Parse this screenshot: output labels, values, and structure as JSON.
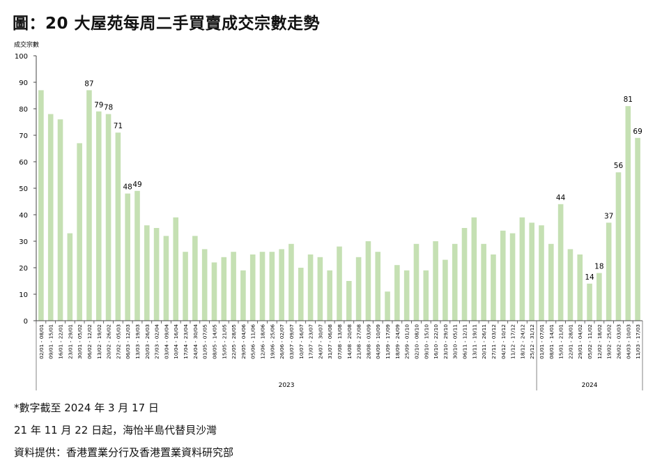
{
  "page": {
    "title": "圖：20 大屋苑每周二手買賣成交宗數走勢",
    "notes": [
      "*數字截至 2024 年 3 月 17 日",
      "21 年 11 月 22 日起，海怡半島代替貝沙灣",
      "資料提供：香港置業分行及香港置業資料研究部"
    ]
  },
  "chart_data": {
    "type": "bar",
    "ylabel": "成交宗數",
    "ylim": [
      0,
      100
    ],
    "yticks": [
      0,
      10,
      20,
      30,
      40,
      50,
      60,
      70,
      80,
      90,
      100
    ],
    "bar_color": "#c5e0b3",
    "year_groups": [
      {
        "label": "2023",
        "count": 52
      },
      {
        "label": "2024",
        "count": 11
      }
    ],
    "categories": [
      "02/01 - 08/01",
      "09/01 - 15/01",
      "16/01 - 22/01",
      "23/01 - 29/01",
      "30/01 - 05/02",
      "06/02 - 12/02",
      "13/02 - 19/02",
      "20/02 - 26/02",
      "27/02 - 05/03",
      "06/03 - 12/03",
      "13/03 - 19/03",
      "20/03 - 26/03",
      "27/03 - 02/04",
      "03/04 - 09/04",
      "10/04 - 16/04",
      "17/04 - 23/04",
      "24/04 - 30/04",
      "01/05 - 07/05",
      "08/05 - 14/05",
      "15/05 - 21/05",
      "22/05 - 28/05",
      "29/05 - 04/06",
      "05/06 - 11/06",
      "12/06 - 18/06",
      "19/06 - 25/06",
      "26/06 - 02/07",
      "03/07 - 09/07",
      "10/07 - 16/07",
      "17/07 - 23/07",
      "24/07 - 30/07",
      "31/07 - 06/08",
      "07/08 - 13/08",
      "14/08 - 20/08",
      "21/08 - 27/08",
      "28/08 - 03/09",
      "04/09 - 10/09",
      "11/09 - 17/09",
      "18/09 - 24/09",
      "25/09 - 01/10",
      "02/10 - 08/10",
      "09/10 - 15/10",
      "16/10 - 22/10",
      "23/10 - 29/10",
      "30/10 - 05/11",
      "06/11 - 12/11",
      "13/11 - 19/11",
      "20/11 - 26/11",
      "27/11 - 03/12",
      "04/12 - 10/12",
      "11/12 - 17/12",
      "18/12 - 24/12",
      "25/12 - 31/12",
      "01/01 - 07/01",
      "08/01 - 14/01",
      "15/01 - 21/01",
      "22/01 - 28/01",
      "29/01 - 04/02",
      "05/02 - 11/02",
      "12/02 - 18/02",
      "19/02 - 25/02",
      "26/02 - 03/03",
      "04/03 - 10/03",
      "11/03 - 17/03"
    ],
    "values": [
      87,
      78,
      76,
      33,
      67,
      87,
      79,
      78,
      71,
      48,
      49,
      36,
      35,
      32,
      39,
      26,
      32,
      27,
      22,
      24,
      26,
      19,
      25,
      26,
      26,
      27,
      29,
      20,
      25,
      24,
      19,
      28,
      15,
      24,
      30,
      26,
      11,
      21,
      19,
      29,
      19,
      30,
      23,
      29,
      35,
      39,
      29,
      25,
      34,
      33,
      39,
      37,
      36,
      29,
      44,
      27,
      25,
      14,
      18,
      37,
      56,
      81,
      69
    ],
    "data_labels": {
      "5": "87",
      "6": "79",
      "7": "78",
      "8": "71",
      "9": "48",
      "10": "49",
      "54": "44",
      "57": "14",
      "58": "18",
      "59": "37",
      "60": "56",
      "61": "81",
      "62": "69"
    }
  }
}
